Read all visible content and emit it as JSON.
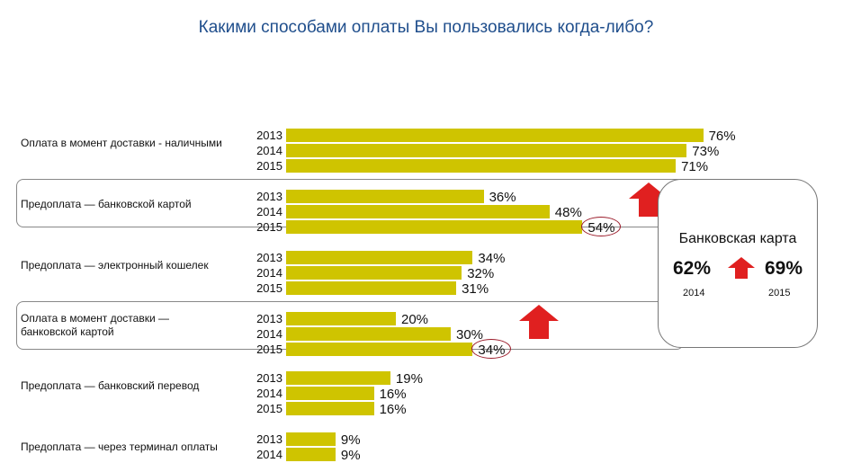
{
  "title": "Какими способами оплаты Вы пользовались когда-либо?",
  "chart_data": {
    "type": "bar",
    "orientation": "horizontal",
    "title": "Какими способами оплаты Вы пользовались когда-либо?",
    "unit": "%",
    "bar_color": "#cfc400",
    "xlim": [
      0,
      100
    ],
    "groups": [
      {
        "label": "Оплата в момент доставки - наличными",
        "highlighted": false,
        "years": [
          "2013",
          "2014",
          "2015"
        ],
        "values": [
          76,
          73,
          71
        ],
        "labels": [
          "76%",
          "73%",
          "71%"
        ]
      },
      {
        "label": "Предоплата — банковской картой",
        "highlighted": true,
        "years": [
          "2013",
          "2014",
          "2015"
        ],
        "values": [
          36,
          48,
          54
        ],
        "labels": [
          "36%",
          "48%",
          "54%"
        ],
        "circled_index": 2,
        "up_arrow": true
      },
      {
        "label": "Предоплата — электронный кошелек",
        "highlighted": false,
        "years": [
          "2013",
          "2014",
          "2015"
        ],
        "values": [
          34,
          32,
          31
        ],
        "labels": [
          "34%",
          "32%",
          "31%"
        ]
      },
      {
        "label": "Оплата в момент доставки — банковской картой",
        "highlighted": true,
        "years": [
          "2013",
          "2014",
          "2015"
        ],
        "values": [
          20,
          30,
          34
        ],
        "labels": [
          "20%",
          "30%",
          "34%"
        ],
        "circled_index": 2,
        "up_arrow": true
      },
      {
        "label": "Предоплата — банковский перевод",
        "highlighted": false,
        "years": [
          "2013",
          "2014",
          "2015"
        ],
        "values": [
          19,
          16,
          16
        ],
        "labels": [
          "19%",
          "16%",
          "16%"
        ]
      },
      {
        "label": "Предоплата — через терминал оплаты",
        "highlighted": false,
        "years": [
          "2013",
          "2014"
        ],
        "values": [
          9,
          9
        ],
        "labels": [
          "9%",
          "9%"
        ]
      }
    ]
  },
  "callout": {
    "title": "Банковская карта",
    "from_value": "62%",
    "to_value": "69%",
    "from_year": "2014",
    "to_year": "2015",
    "arrow_color": "#e02020"
  }
}
